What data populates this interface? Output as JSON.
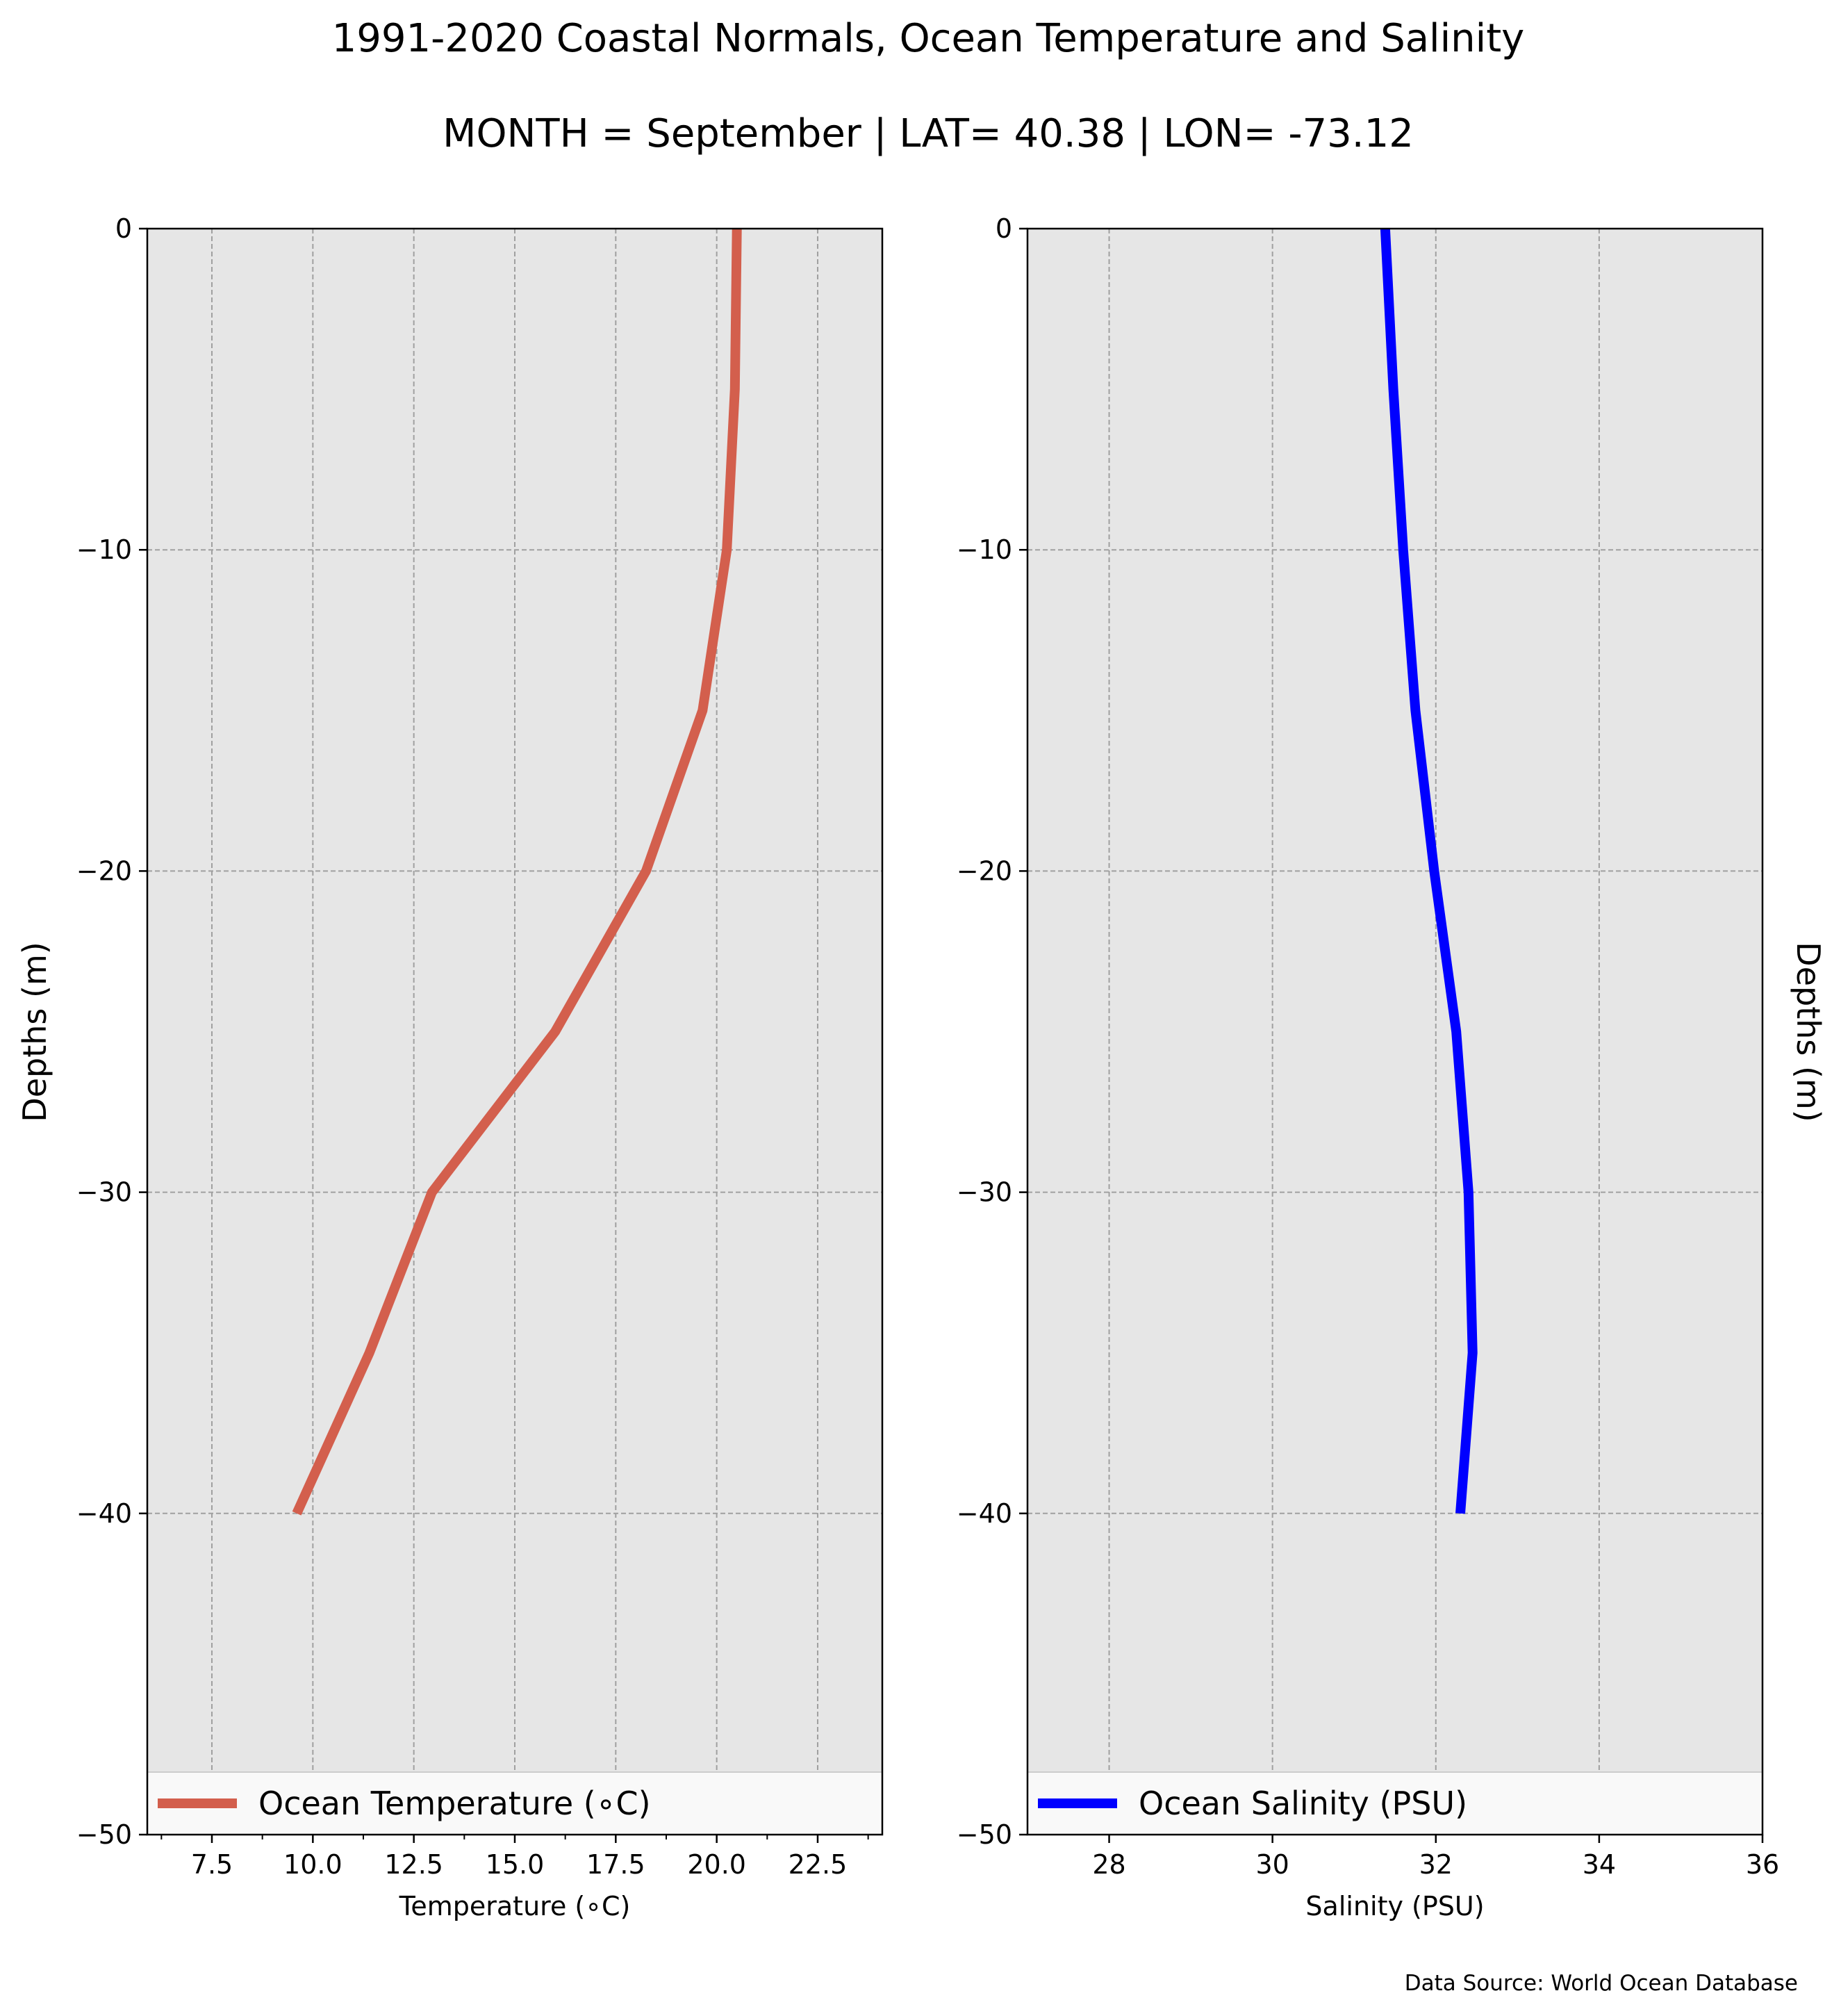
{
  "title": "1991-2020 Coastal Normals, Ocean Temperature and Salinity",
  "subtitle": "MONTH = September | LAT= 40.38 | LON= -73.12",
  "source_note": "Data Source: World Ocean Database",
  "colors": {
    "temperature": "#d35f4d",
    "salinity": "#0000ff",
    "plot_background": "#e6e6e6",
    "grid": "#a0a0a0"
  },
  "chart_data": [
    {
      "type": "line",
      "xlabel": "Temperature ($^\\circ$C)",
      "xlabel_display": "Temperature (∘C)",
      "ylabel": "Depths (m)",
      "xlim": [
        5.9,
        24.1
      ],
      "ylim": [
        -50,
        0
      ],
      "xticks": [
        7.5,
        10.0,
        12.5,
        15.0,
        17.5,
        20.0,
        22.5
      ],
      "xtick_labels": [
        "7.5",
        "10.0",
        "12.5",
        "15.0",
        "17.5",
        "20.0",
        "22.5"
      ],
      "xminor": [
        6.25,
        8.75,
        11.25,
        13.75,
        16.25,
        18.75,
        21.25,
        23.75
      ],
      "yticks": [
        0,
        -10,
        -20,
        -30,
        -40,
        -50
      ],
      "ytick_labels": [
        "0",
        "−10",
        "−20",
        "−30",
        "−40",
        "−50"
      ],
      "grid": true,
      "legend_position": "lower center",
      "series": [
        {
          "name": "Ocean Temperature (∘C)",
          "x": [
            20.5,
            20.45,
            20.25,
            19.65,
            18.25,
            16.0,
            12.95,
            11.4,
            9.6
          ],
          "y": [
            0,
            -5,
            -10,
            -15,
            -20,
            -25,
            -30,
            -35,
            -40
          ]
        }
      ]
    },
    {
      "type": "line",
      "xlabel": "Salinity (PSU)",
      "ylabel": "Depths (m)",
      "xlim": [
        27,
        36
      ],
      "ylim": [
        -50,
        0
      ],
      "xticks": [
        28,
        30,
        32,
        34,
        36
      ],
      "xtick_labels": [
        "28",
        "30",
        "32",
        "34",
        "36"
      ],
      "yticks": [
        0,
        -10,
        -20,
        -30,
        -40,
        -50
      ],
      "ytick_labels": [
        "0",
        "−10",
        "−20",
        "−30",
        "−40",
        "−50"
      ],
      "grid": true,
      "legend_position": "lower center",
      "series": [
        {
          "name": "Ocean Salinity (PSU)",
          "x": [
            31.38,
            31.48,
            31.6,
            31.75,
            31.98,
            32.25,
            32.4,
            32.45,
            32.3
          ],
          "y": [
            0,
            -5,
            -10,
            -15,
            -20,
            -25,
            -30,
            -35,
            -40
          ]
        }
      ]
    }
  ]
}
